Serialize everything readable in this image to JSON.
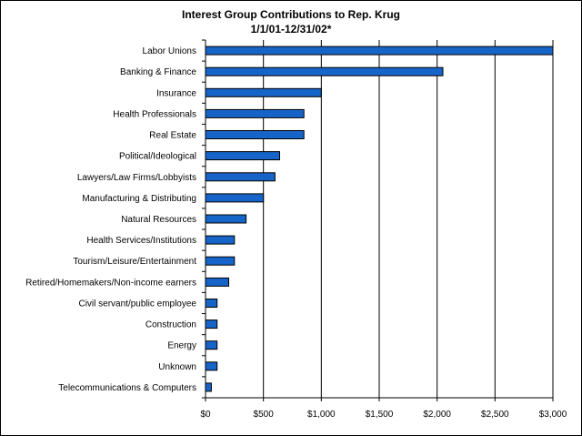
{
  "chart_data": {
    "type": "bar",
    "orientation": "horizontal",
    "title": "Interest Group Contributions to Rep. Krug",
    "subtitle": "1/1/01-12/31/02*",
    "xlabel": "",
    "ylabel": "",
    "categories": [
      "Labor Unions",
      "Banking & Finance",
      "Insurance",
      "Health Professionals",
      "Real Estate",
      "Political/Ideological",
      "Lawyers/Law Firms/Lobbyists",
      "Manufacturing & Distributing",
      "Natural Resources",
      "Health Services/Institutions",
      "Tourism/Leisure/Entertainment",
      "Retired/Homemakers/Non-income earners",
      "Civil servant/public employee",
      "Construction",
      "Energy",
      "Unknown",
      "Telecommunications & Computers"
    ],
    "values": [
      3000,
      2050,
      1000,
      850,
      850,
      640,
      600,
      500,
      350,
      250,
      250,
      200,
      100,
      100,
      100,
      100,
      50
    ],
    "xlim": [
      0,
      3000
    ],
    "xticks": [
      0,
      500,
      1000,
      1500,
      2000,
      2500,
      3000
    ],
    "xtick_labels": [
      "$0",
      "$500",
      "$1,000",
      "$1,500",
      "$2,000",
      "$2,500",
      "$3,000"
    ],
    "grid": "vertical",
    "legend": "none",
    "bar_color": "#1764c8",
    "bar_edge_color": "#000000"
  }
}
